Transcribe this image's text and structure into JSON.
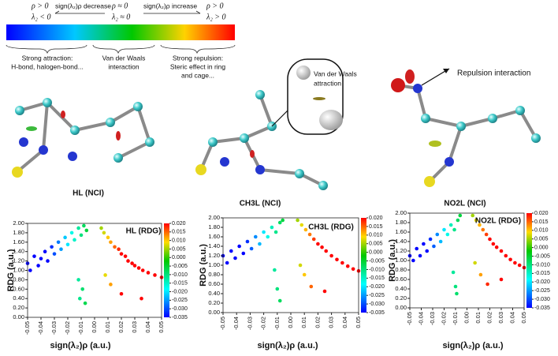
{
  "legend_bar": {
    "left_top": "ρ > 0",
    "left_bottom": "λ₂ < 0",
    "decrease": "sign(λ₂)ρ decrease",
    "mid_top": "ρ ≈ 0",
    "mid_bottom": "λ₂ ≈ 0",
    "increase": "sign(λ₂)ρ increase",
    "right_top": "ρ > 0",
    "right_bottom": "λ₂ > 0",
    "attraction": [
      "Strong attraction:",
      "H-bond, halogen-bond..."
    ],
    "vdw": [
      "Van der Waals",
      "interaction"
    ],
    "repulsion": [
      "Strong repulsion:",
      "Steric effect in ring",
      "and cage..."
    ]
  },
  "molecules": [
    {
      "label": "HL (NCI)"
    },
    {
      "label": "CH3L (NCI)",
      "callout": [
        "Van der Waals",
        "attraction"
      ]
    },
    {
      "label": "NO2L (NCI)",
      "callout": [
        "Repulsion interaction"
      ]
    }
  ],
  "chart_data": [
    {
      "type": "scatter",
      "title": "HL (RDG)",
      "x_label": "sign(λ₂)ρ (a.u.)",
      "y_label": "RDG (a.u.)",
      "x": [
        -0.05,
        -0.048,
        -0.045,
        -0.042,
        -0.04,
        -0.037,
        -0.035,
        -0.032,
        -0.03,
        -0.027,
        -0.025,
        -0.022,
        -0.02,
        -0.017,
        -0.015,
        -0.012,
        -0.01,
        -0.008,
        -0.006,
        -0.009,
        -0.011,
        -0.007,
        -0.012,
        0.005,
        0.007,
        0.01,
        0.012,
        0.015,
        0.018,
        0.02,
        0.023,
        0.025,
        0.028,
        0.03,
        0.033,
        0.036,
        0.04,
        0.045,
        0.05,
        0.012,
        0.02,
        0.035,
        0.008
      ],
      "y": [
        1.15,
        1.0,
        1.3,
        1.1,
        1.25,
        1.4,
        1.2,
        1.5,
        1.35,
        1.6,
        1.45,
        1.7,
        1.55,
        1.8,
        1.65,
        1.9,
        1.75,
        1.95,
        1.85,
        0.6,
        0.4,
        0.3,
        0.8,
        1.9,
        1.8,
        1.7,
        1.6,
        1.5,
        1.45,
        1.35,
        1.3,
        1.2,
        1.15,
        1.1,
        1.05,
        1.0,
        0.95,
        0.9,
        0.85,
        0.7,
        0.5,
        0.4,
        0.9
      ],
      "xlim": [
        -0.05,
        0.05
      ],
      "ylim": [
        0,
        2
      ],
      "xticks": [
        -0.05,
        -0.04,
        -0.03,
        -0.02,
        -0.01,
        {
          "value": 0,
          "label": "0.00"
        },
        0.01,
        0.02,
        0.03,
        0.04,
        0.05
      ],
      "yticks": [
        {
          "value": 0,
          "label": "0.00"
        },
        {
          "value": 0.2,
          "label": "0.20"
        },
        {
          "value": 0.4,
          "label": "0.40"
        },
        {
          "value": 0.6,
          "label": "0.60"
        },
        {
          "value": 0.8,
          "label": "0.80"
        },
        {
          "value": 1,
          "label": "1.00"
        },
        {
          "value": 1.2,
          "label": "1.20"
        },
        {
          "value": 1.4,
          "label": "1.40"
        },
        {
          "value": 1.6,
          "label": "1.60"
        },
        {
          "value": 1.8,
          "label": "1.80"
        },
        {
          "value": 2,
          "label": "2.00"
        }
      ],
      "colorbar": {
        "lim": [
          -0.035,
          0.02
        ],
        "ticks": [
          {
            "value": 0.02,
            "label": "0.020"
          },
          0.015,
          {
            "value": 0.01,
            "label": "0.010"
          },
          0.005,
          {
            "value": 0,
            "label": "0.000"
          },
          -0.005,
          {
            "value": -0.01,
            "label": "-0.010"
          },
          -0.015,
          {
            "value": -0.02,
            "label": "-0.020"
          },
          -0.025,
          {
            "value": -0.03,
            "label": "-0.030"
          },
          -0.035
        ]
      }
    },
    {
      "type": "scatter",
      "title": "CH3L (RDG)",
      "x_label": "sign(λ₂)ρ (a.u.)",
      "y_label": "RDG (a.u.)",
      "x": [
        -0.05,
        -0.047,
        -0.044,
        -0.041,
        -0.038,
        -0.035,
        -0.032,
        -0.029,
        -0.026,
        -0.023,
        -0.02,
        -0.017,
        -0.014,
        -0.011,
        -0.008,
        -0.006,
        -0.01,
        -0.008,
        -0.012,
        0.005,
        0.008,
        0.011,
        0.014,
        0.017,
        0.02,
        0.023,
        0.026,
        0.03,
        0.034,
        0.038,
        0.042,
        0.046,
        0.05,
        0.01,
        0.015,
        0.025,
        0.007
      ],
      "y": [
        1.2,
        1.05,
        1.3,
        1.15,
        1.4,
        1.25,
        1.5,
        1.35,
        1.6,
        1.45,
        1.7,
        1.6,
        1.8,
        1.7,
        1.9,
        1.95,
        0.5,
        0.25,
        0.9,
        1.95,
        1.85,
        1.75,
        1.65,
        1.55,
        1.45,
        1.38,
        1.3,
        1.2,
        1.12,
        1.05,
        0.98,
        0.92,
        0.88,
        0.8,
        0.55,
        0.45,
        1.0
      ],
      "xlim": [
        -0.05,
        0.05
      ],
      "ylim": [
        0,
        2
      ],
      "xticks": [
        -0.05,
        -0.04,
        -0.03,
        -0.02,
        -0.01,
        {
          "value": 0,
          "label": "0.00"
        },
        0.01,
        0.02,
        0.03,
        0.04,
        0.05
      ],
      "yticks": [
        {
          "value": 0,
          "label": "0.00"
        },
        {
          "value": 0.2,
          "label": "0.20"
        },
        {
          "value": 0.4,
          "label": "0.40"
        },
        {
          "value": 0.6,
          "label": "0.60"
        },
        {
          "value": 0.8,
          "label": "0.80"
        },
        {
          "value": 1,
          "label": "1.00"
        },
        {
          "value": 1.2,
          "label": "1.20"
        },
        {
          "value": 1.4,
          "label": "1.40"
        },
        {
          "value": 1.6,
          "label": "1.60"
        },
        {
          "value": 1.8,
          "label": "1.80"
        },
        {
          "value": 2,
          "label": "2.00"
        }
      ],
      "colorbar": {
        "lim": [
          -0.035,
          0.02
        ],
        "ticks": [
          {
            "value": 0.02,
            "label": "0.020"
          },
          0.015,
          {
            "value": 0.01,
            "label": "0.010"
          },
          0.005,
          {
            "value": 0,
            "label": "0.000"
          },
          -0.005,
          {
            "value": -0.01,
            "label": "-0.010"
          },
          -0.015,
          {
            "value": -0.02,
            "label": "-0.020"
          },
          -0.025,
          {
            "value": -0.03,
            "label": "-0.030"
          },
          -0.035
        ]
      }
    },
    {
      "type": "scatter",
      "title": "NO2L (RDG)",
      "x_label": "sign(λ₂)ρ (a.u.)",
      "y_label": "RDG (a.u.)",
      "x": [
        -0.05,
        -0.047,
        -0.044,
        -0.041,
        -0.038,
        -0.035,
        -0.032,
        -0.029,
        -0.026,
        -0.023,
        -0.02,
        -0.017,
        -0.014,
        -0.011,
        -0.008,
        -0.006,
        -0.01,
        -0.009,
        -0.012,
        0.005,
        0.008,
        0.011,
        0.014,
        0.017,
        0.02,
        0.023,
        0.026,
        0.03,
        0.034,
        0.038,
        0.042,
        0.046,
        0.05,
        0.012,
        0.018,
        0.03,
        0.007
      ],
      "y": [
        1.1,
        1.0,
        1.25,
        1.1,
        1.35,
        1.2,
        1.45,
        1.3,
        1.55,
        1.4,
        1.65,
        1.55,
        1.75,
        1.65,
        1.85,
        1.95,
        0.45,
        0.3,
        0.75,
        1.95,
        1.85,
        1.75,
        1.65,
        1.55,
        1.45,
        1.35,
        1.28,
        1.2,
        1.1,
        1.02,
        0.95,
        0.9,
        0.85,
        0.7,
        0.5,
        0.6,
        0.95
      ],
      "xlim": [
        -0.05,
        0.05
      ],
      "ylim": [
        0,
        2
      ],
      "xticks": [
        -0.05,
        -0.04,
        -0.03,
        -0.02,
        -0.01,
        {
          "value": 0,
          "label": "0.00"
        },
        0.01,
        0.02,
        0.03,
        0.04,
        0.05
      ],
      "yticks": [
        {
          "value": 0,
          "label": "0.00"
        },
        {
          "value": 0.2,
          "label": "0.20"
        },
        {
          "value": 0.4,
          "label": "0.40"
        },
        {
          "value": 0.6,
          "label": "0.60"
        },
        {
          "value": 0.8,
          "label": "0.80"
        },
        {
          "value": 1,
          "label": "1.00"
        },
        {
          "value": 1.2,
          "label": "1.20"
        },
        {
          "value": 1.4,
          "label": "1.40"
        },
        {
          "value": 1.6,
          "label": "1.60"
        },
        {
          "value": 1.8,
          "label": "1.80"
        },
        {
          "value": 2,
          "label": "2.00"
        }
      ],
      "colorbar": {
        "lim": [
          -0.035,
          0.02
        ],
        "ticks": [
          {
            "value": 0.02,
            "label": "0.020"
          },
          0.015,
          {
            "value": 0.01,
            "label": "0.010"
          },
          0.005,
          {
            "value": 0,
            "label": "0.000"
          },
          -0.005,
          {
            "value": -0.01,
            "label": "-0.010"
          },
          -0.015,
          {
            "value": -0.02,
            "label": "-0.020"
          },
          -0.025,
          {
            "value": -0.03,
            "label": "-0.030"
          },
          -0.035
        ]
      }
    }
  ]
}
